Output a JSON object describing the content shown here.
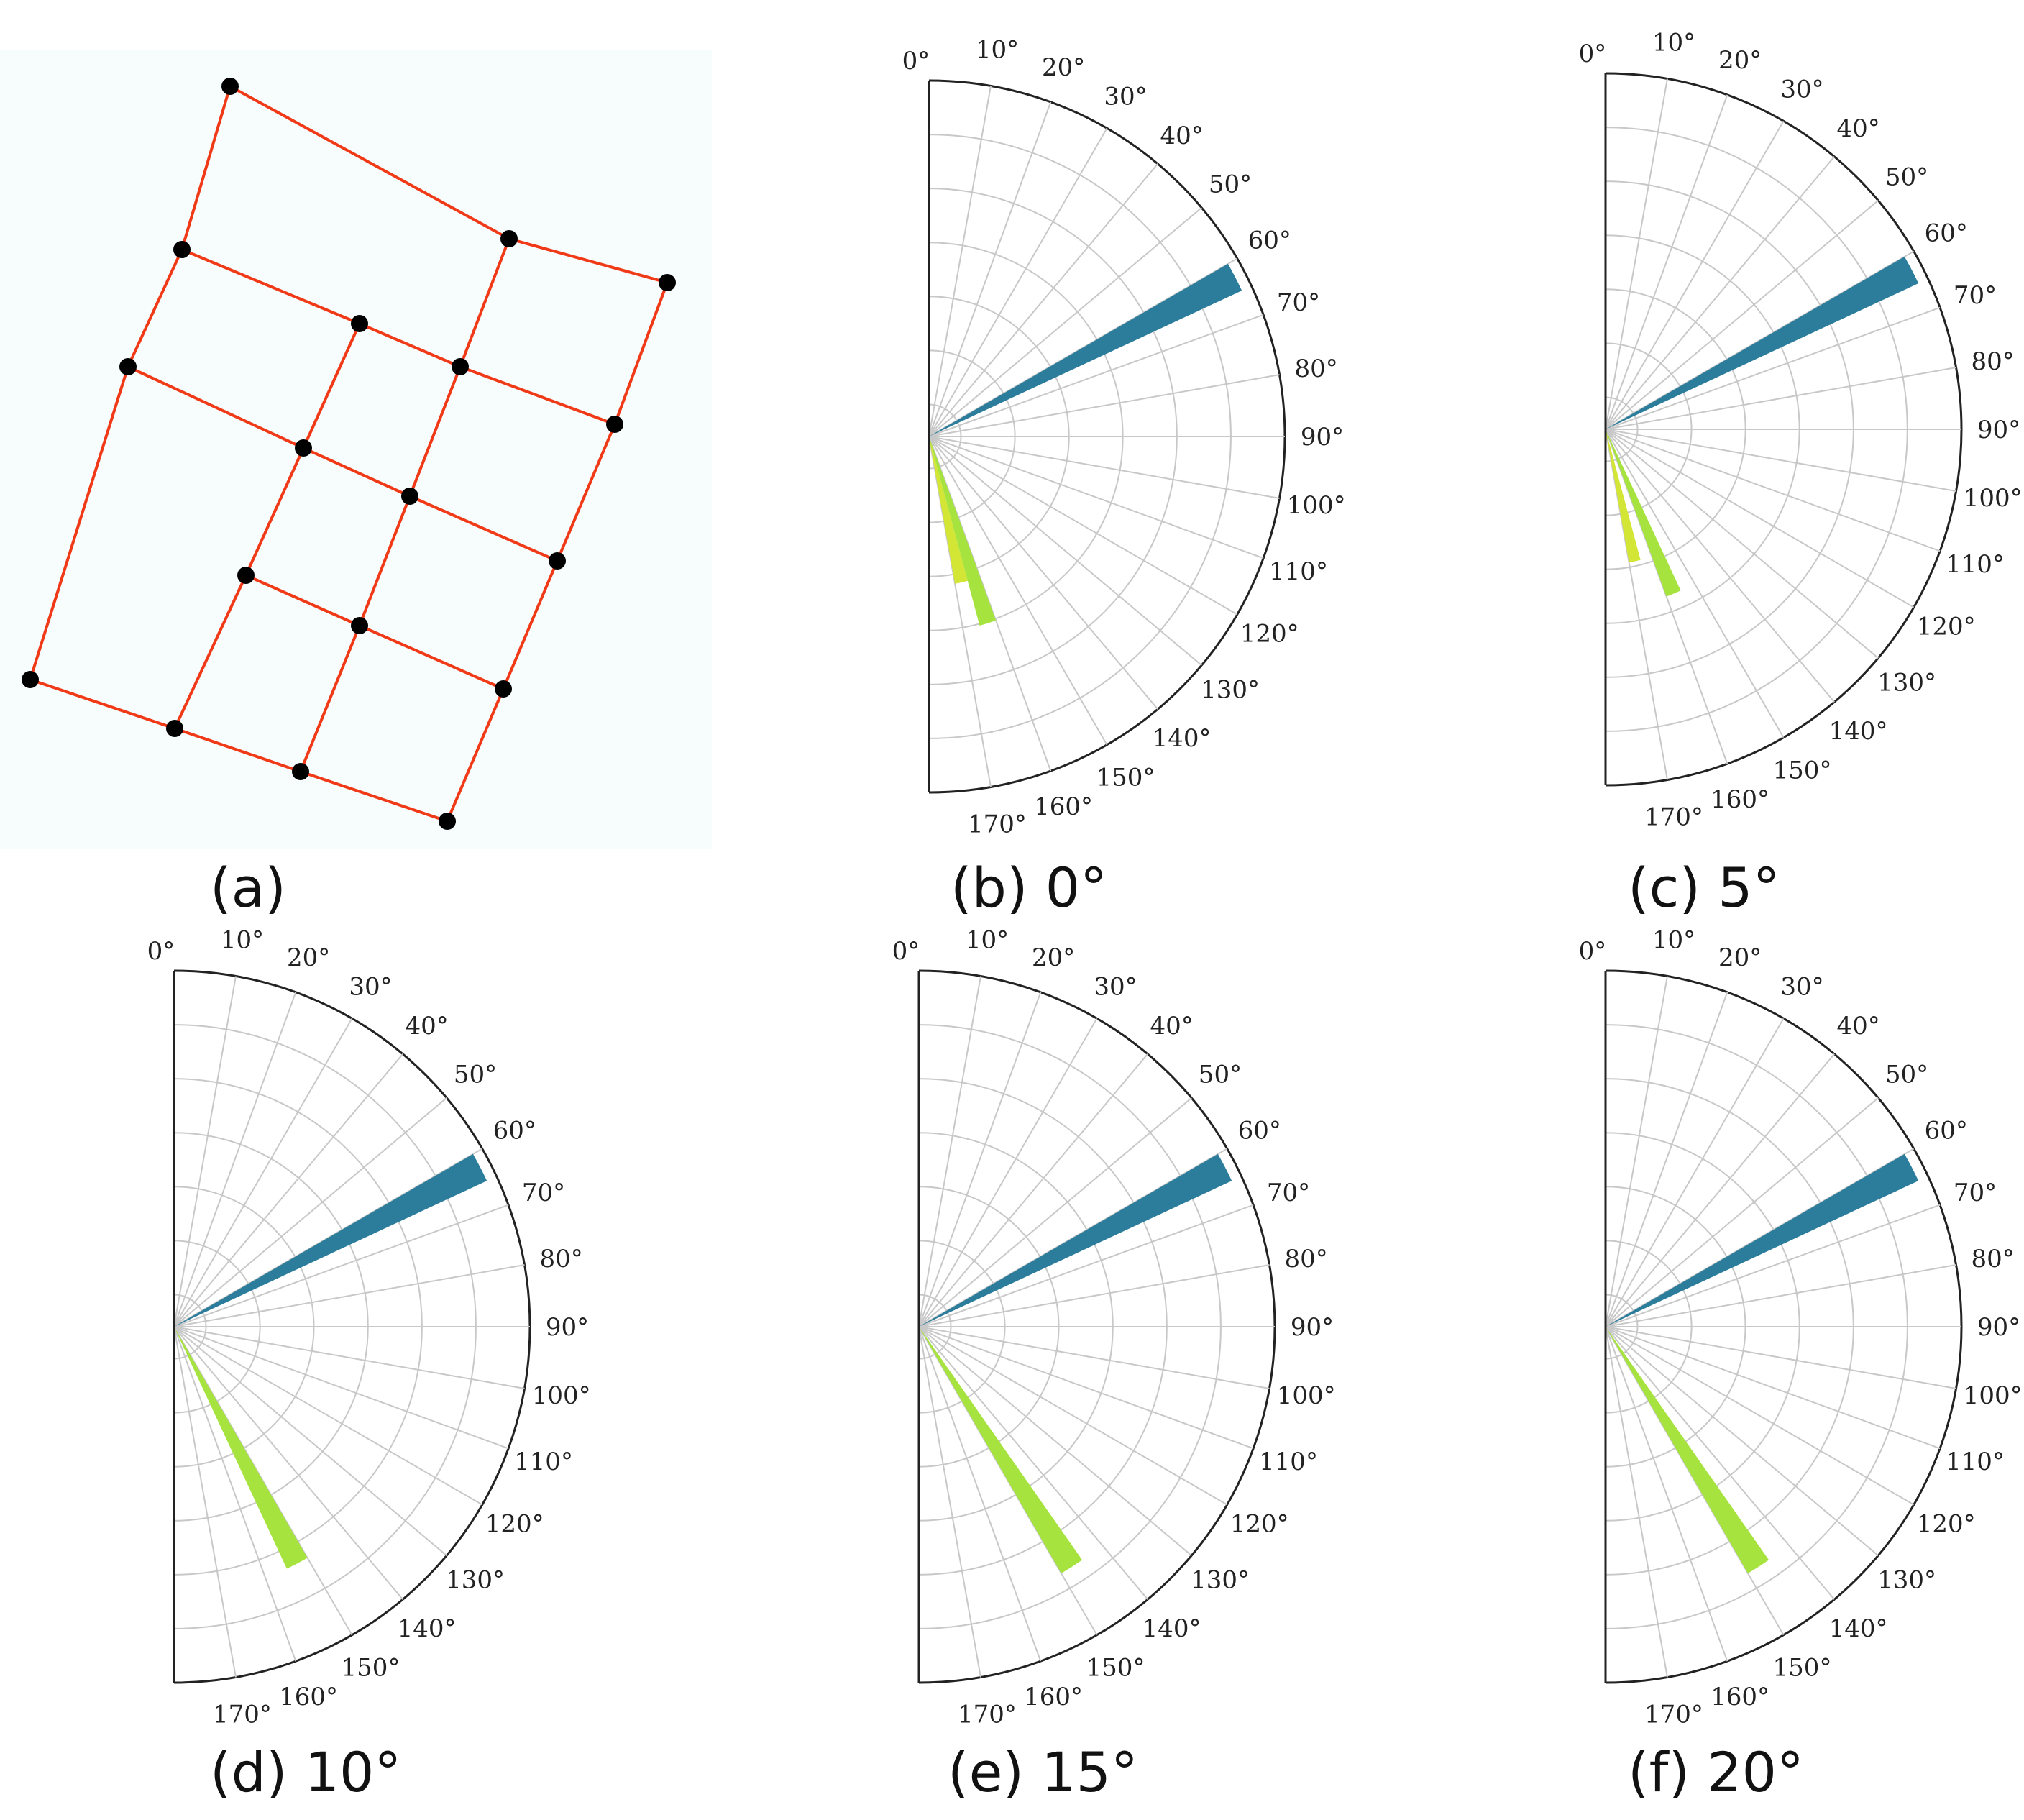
{
  "colors": {
    "network_line": "#f03a17",
    "network_node": "#000000",
    "background_panel": "#f7fcfd",
    "grid": "#c8c8c8",
    "frame": "#222222",
    "bin_blue": "#2b7d9b",
    "bin_yellow": "#d3e635",
    "bin_green": "#a6e33f"
  },
  "figure_a": {
    "caption": "(a)",
    "nodes": [
      {
        "id": "n1"
      },
      {
        "id": "n2"
      },
      {
        "id": "n3"
      },
      {
        "id": "n4"
      },
      {
        "id": "n5"
      },
      {
        "id": "n6"
      },
      {
        "id": "n7"
      },
      {
        "id": "n8"
      },
      {
        "id": "n9"
      },
      {
        "id": "n10"
      },
      {
        "id": "n11"
      },
      {
        "id": "n12"
      },
      {
        "id": "n13"
      },
      {
        "id": "n14"
      },
      {
        "id": "n15"
      },
      {
        "id": "n16"
      },
      {
        "id": "n17"
      },
      {
        "id": "n18"
      },
      {
        "id": "n19"
      }
    ]
  },
  "chart_data": [
    {
      "type": "polar-bar",
      "caption": "(b) 0°",
      "theta_range_deg": [
        0,
        180
      ],
      "theta_ticks": [
        "0°",
        "10°",
        "20°",
        "30°",
        "40°",
        "50°",
        "60°",
        "70°",
        "80°",
        "90°",
        "100°",
        "110°",
        "120°",
        "130°",
        "140°",
        "150°",
        "160°",
        "170°"
      ],
      "r_range": [
        0,
        1.0
      ],
      "grid": true,
      "bars": [
        {
          "theta_start": 60,
          "theta_end": 65,
          "r": 0.97,
          "color": "bin_blue"
        },
        {
          "theta_start": 165,
          "theta_end": 170,
          "r": 0.42,
          "color": "bin_yellow"
        },
        {
          "theta_start": 160,
          "theta_end": 165,
          "r": 0.55,
          "color": "bin_green"
        }
      ]
    },
    {
      "type": "polar-bar",
      "caption": "(c) 5°",
      "theta_range_deg": [
        0,
        180
      ],
      "theta_ticks": [
        "0°",
        "10°",
        "20°",
        "30°",
        "40°",
        "50°",
        "60°",
        "70°",
        "80°",
        "90°",
        "100°",
        "110°",
        "120°",
        "130°",
        "140°",
        "150°",
        "160°",
        "170°"
      ],
      "r_range": [
        0,
        1.0
      ],
      "grid": true,
      "bars": [
        {
          "theta_start": 60,
          "theta_end": 65,
          "r": 0.97,
          "color": "bin_blue"
        },
        {
          "theta_start": 165,
          "theta_end": 170,
          "r": 0.38,
          "color": "bin_yellow"
        },
        {
          "theta_start": 155,
          "theta_end": 160,
          "r": 0.5,
          "color": "bin_green"
        }
      ]
    },
    {
      "type": "polar-bar",
      "caption": "(d) 10°",
      "theta_range_deg": [
        0,
        180
      ],
      "theta_ticks": [
        "0°",
        "10°",
        "20°",
        "30°",
        "40°",
        "50°",
        "60°",
        "70°",
        "80°",
        "90°",
        "100°",
        "110°",
        "120°",
        "130°",
        "140°",
        "150°",
        "160°",
        "170°"
      ],
      "r_range": [
        0,
        1.0
      ],
      "grid": true,
      "bars": [
        {
          "theta_start": 60,
          "theta_end": 65,
          "r": 0.97,
          "color": "bin_blue"
        },
        {
          "theta_start": 150,
          "theta_end": 155,
          "r": 0.75,
          "color": "bin_green"
        }
      ]
    },
    {
      "type": "polar-bar",
      "caption": "(e) 15°",
      "theta_range_deg": [
        0,
        180
      ],
      "theta_ticks": [
        "0°",
        "10°",
        "20°",
        "30°",
        "40°",
        "50°",
        "60°",
        "70°",
        "80°",
        "90°",
        "100°",
        "110°",
        "120°",
        "130°",
        "140°",
        "150°",
        "160°",
        "170°"
      ],
      "r_range": [
        0,
        1.0
      ],
      "grid": true,
      "bars": [
        {
          "theta_start": 60,
          "theta_end": 65,
          "r": 0.97,
          "color": "bin_blue"
        },
        {
          "theta_start": 145,
          "theta_end": 150,
          "r": 0.8,
          "color": "bin_green"
        }
      ]
    },
    {
      "type": "polar-bar",
      "caption": "(f) 20°",
      "theta_range_deg": [
        0,
        180
      ],
      "theta_ticks": [
        "0°",
        "10°",
        "20°",
        "30°",
        "40°",
        "50°",
        "60°",
        "70°",
        "80°",
        "90°",
        "100°",
        "110°",
        "120°",
        "130°",
        "140°",
        "150°",
        "160°",
        "170°"
      ],
      "r_range": [
        0,
        1.0
      ],
      "grid": true,
      "bars": [
        {
          "theta_start": 60,
          "theta_end": 65,
          "r": 0.97,
          "color": "bin_blue"
        },
        {
          "theta_start": 145,
          "theta_end": 150,
          "r": 0.8,
          "color": "bin_green"
        }
      ]
    }
  ]
}
